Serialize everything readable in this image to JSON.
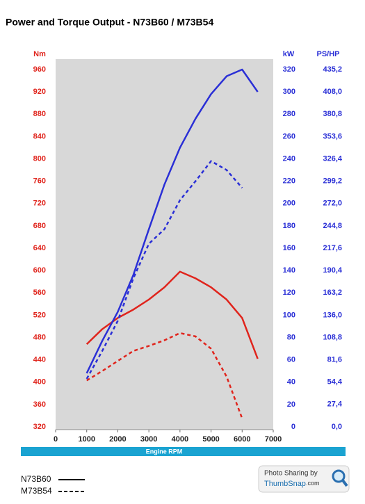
{
  "chart_data": {
    "type": "line",
    "title": "Power and Torque Output - N73B60 / M73B54",
    "x_label": "Engine RPM",
    "y_label": "Nm",
    "y2_label": "kW",
    "y3_label": "PS/HP",
    "x": [
      1000,
      1500,
      2000,
      2500,
      3000,
      3500,
      4000,
      4500,
      5000,
      5500,
      6000,
      6500
    ],
    "xlim": [
      0,
      7000
    ],
    "xticks": [
      0,
      1000,
      2000,
      3000,
      4000,
      5000,
      6000,
      7000
    ],
    "ylim": [
      320,
      960
    ],
    "yticks": [
      320,
      360,
      400,
      440,
      480,
      520,
      560,
      600,
      640,
      680,
      720,
      760,
      800,
      840,
      880,
      920,
      960
    ],
    "y2lim": [
      0,
      320
    ],
    "y2ticks": [
      0,
      20,
      40,
      60,
      80,
      100,
      120,
      140,
      160,
      180,
      200,
      220,
      240,
      260,
      280,
      300,
      320
    ],
    "y3lim": [
      0,
      435.2
    ],
    "y3ticks": [
      {
        "value": 0,
        "label": "0,0"
      },
      {
        "value": 27.4,
        "label": "27,4"
      },
      {
        "value": 54.4,
        "label": "54,4"
      },
      {
        "value": 81.6,
        "label": "81,6"
      },
      {
        "value": 108.8,
        "label": "108,8"
      },
      {
        "value": 136,
        "label": "136,0"
      },
      {
        "value": 163.2,
        "label": "163,2"
      },
      {
        "value": 190.4,
        "label": "190,4"
      },
      {
        "value": 217.6,
        "label": "217,6"
      },
      {
        "value": 244.8,
        "label": "244,8"
      },
      {
        "value": 272,
        "label": "272,0"
      },
      {
        "value": 299.2,
        "label": "299,2"
      },
      {
        "value": 326.4,
        "label": "326,4"
      },
      {
        "value": 353.6,
        "label": "353,6"
      },
      {
        "value": 380.8,
        "label": "380,8"
      },
      {
        "value": 408,
        "label": "408,0"
      },
      {
        "value": 435.2,
        "label": "435,2"
      }
    ],
    "torque_color": "#e0241c",
    "power_color": "#2a2fd6",
    "series": [
      {
        "name": "N73B60",
        "dash": "solid",
        "torque": [
          468,
          495,
          515,
          530,
          548,
          570,
          598,
          586,
          570,
          548,
          515,
          442
        ],
        "power": [
          48,
          77,
          103,
          136,
          177,
          217,
          250,
          276,
          298,
          314,
          320,
          300
        ]
      },
      {
        "name": "M73B54",
        "dash": "dashed",
        "torque": [
          403,
          420,
          438,
          456,
          465,
          475,
          488,
          482,
          460,
          410,
          335,
          null
        ],
        "power": [
          43,
          68,
          95,
          133,
          164,
          177,
          203,
          220,
          238,
          230,
          214,
          null
        ]
      }
    ],
    "watermark": [
      "Photo Sharing by",
      "ThumbSnap",
      ".com"
    ]
  }
}
